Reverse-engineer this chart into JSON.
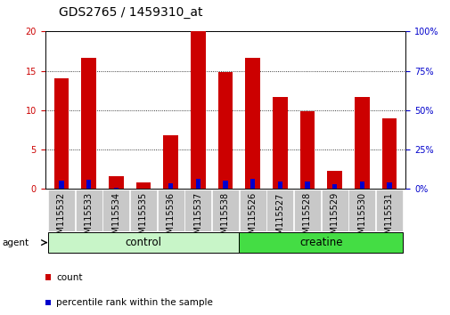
{
  "title": "GDS2765 / 1459310_at",
  "categories": [
    "GSM115532",
    "GSM115533",
    "GSM115534",
    "GSM115535",
    "GSM115536",
    "GSM115537",
    "GSM115538",
    "GSM115526",
    "GSM115527",
    "GSM115528",
    "GSM115529",
    "GSM115530",
    "GSM115531"
  ],
  "count_values": [
    14.0,
    16.7,
    1.6,
    0.8,
    6.8,
    20.0,
    14.9,
    16.7,
    11.7,
    9.9,
    2.3,
    11.7,
    9.0
  ],
  "percentile_values": [
    5.3,
    5.9,
    1.0,
    0.3,
    3.5,
    6.6,
    5.5,
    6.3,
    5.0,
    4.6,
    3.2,
    5.0,
    3.9
  ],
  "groups": [
    {
      "label": "control",
      "indices": [
        0,
        1,
        2,
        3,
        4,
        5,
        6
      ],
      "color": "#c8f5c8"
    },
    {
      "label": "creatine",
      "indices": [
        7,
        8,
        9,
        10,
        11,
        12
      ],
      "color": "#44dd44"
    }
  ],
  "ylim_left": [
    0,
    20
  ],
  "ylim_right": [
    0,
    100
  ],
  "yticks_left": [
    0,
    5,
    10,
    15,
    20
  ],
  "yticks_right": [
    0,
    25,
    50,
    75,
    100
  ],
  "bar_color_count": "#cc0000",
  "bar_color_percentile": "#0000cc",
  "bar_width": 0.55,
  "tick_area_color": "#c8c8c8",
  "legend_items": [
    {
      "color": "#cc0000",
      "label": "count"
    },
    {
      "color": "#0000cc",
      "label": "percentile rank within the sample"
    }
  ],
  "title_fontsize": 10,
  "tick_fontsize": 7,
  "group_label_fontsize": 8.5,
  "right_yaxis_color": "#0000cc",
  "left_yaxis_color": "#cc0000",
  "agent_label": "agent"
}
